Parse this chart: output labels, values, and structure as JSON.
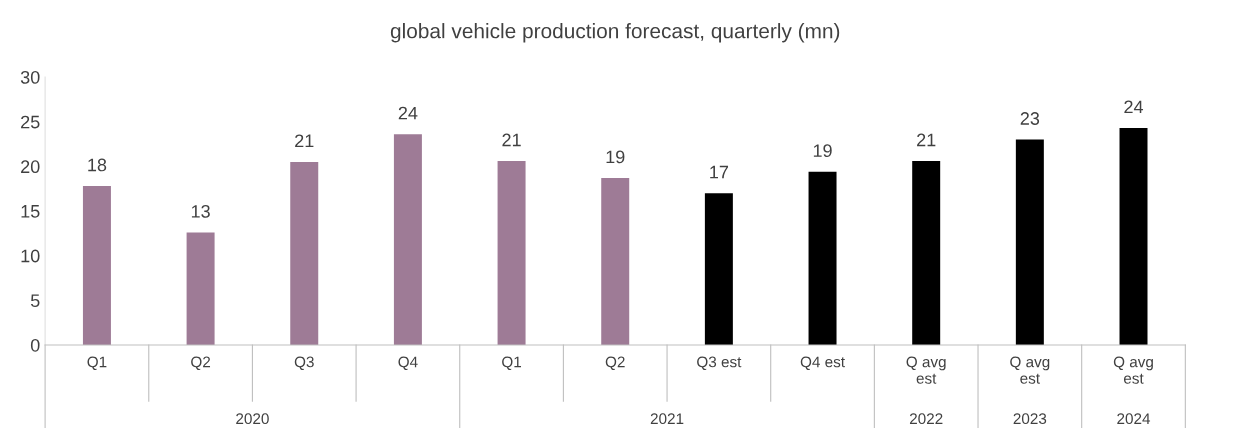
{
  "chart_data": {
    "type": "bar",
    "title": "global vehicle production forecast, quarterly (mn)",
    "categories": [
      "Q1",
      "Q2",
      "Q3",
      "Q4",
      "Q1",
      "Q2",
      "Q3 est",
      "Q4 est",
      "Q avg\nest",
      "Q avg\nest",
      "Q avg\nest"
    ],
    "values": [
      17.8,
      12.6,
      20.5,
      23.6,
      20.6,
      18.7,
      17.0,
      19.4,
      20.6,
      23.0,
      24.3
    ],
    "colors": [
      "#9e7b96",
      "#9e7b96",
      "#9e7b96",
      "#9e7b96",
      "#9e7b96",
      "#9e7b96",
      "#000000",
      "#000000",
      "#000000",
      "#000000",
      "#000000"
    ],
    "value_labels": [
      "18",
      "13",
      "21",
      "24",
      "21",
      "19",
      "17",
      "19",
      "21",
      "23",
      "24"
    ],
    "annotations": [
      "2020",
      "2021",
      "2022",
      "2023",
      "2024"
    ],
    "ylim": [
      0,
      30
    ],
    "yticks": [
      0,
      5,
      10,
      15,
      20,
      25,
      30
    ],
    "grid": false
  }
}
